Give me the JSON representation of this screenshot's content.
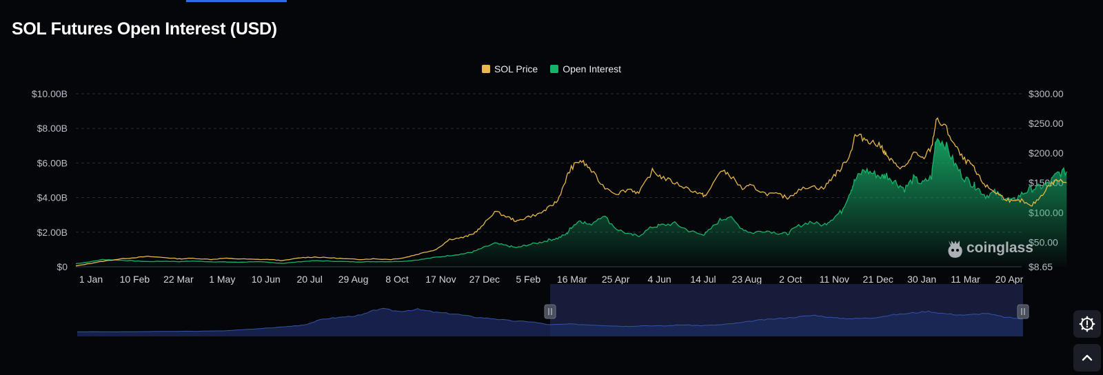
{
  "page": {
    "title": "SOL Futures Open Interest (USD)",
    "watermark": "coinglass"
  },
  "colors": {
    "background": "#05060a",
    "price": "#e8b84a",
    "open_interest": "#18b36b",
    "grid": "#2a2d36",
    "navigator_fill": "#1c2a5e",
    "navigator_line": "#3553a8",
    "navigator_selected": "#1a2142"
  },
  "chart_data": {
    "type": "line",
    "title": "SOL Futures Open Interest (USD)",
    "x_labels": [
      "1 Jan",
      "10 Feb",
      "22 Mar",
      "1 May",
      "10 Jun",
      "20 Jul",
      "29 Aug",
      "8 Oct",
      "17 Nov",
      "27 Dec",
      "5 Feb",
      "16 Mar",
      "25 Apr",
      "4 Jun",
      "14 Jul",
      "23 Aug",
      "2 Oct",
      "11 Nov",
      "21 Dec",
      "30 Jan",
      "11 Mar",
      "20 Apr"
    ],
    "left_axis": {
      "ticks": [
        "$0",
        "$2.00B",
        "$4.00B",
        "$6.00B",
        "$8.00B",
        "$10.00B"
      ],
      "range": [
        0,
        10
      ]
    },
    "right_axis": {
      "ticks": [
        "$8.65",
        "$50.00",
        "$100.00",
        "$150.00",
        "$200.00",
        "$250.00",
        "$300.00"
      ],
      "range": [
        8.65,
        300
      ]
    },
    "legend": {
      "placement": "top-center"
    },
    "grid": true,
    "series": [
      {
        "name": "SOL Price",
        "axis": "right",
        "color": "#e8b84a",
        "points": [
          [
            0,
            10
          ],
          [
            0.3,
            14
          ],
          [
            0.6,
            18
          ],
          [
            1,
            22
          ],
          [
            1.3,
            24
          ],
          [
            1.6,
            26
          ],
          [
            2,
            24
          ],
          [
            2.3,
            22
          ],
          [
            2.6,
            23
          ],
          [
            3,
            21
          ],
          [
            3.3,
            23
          ],
          [
            3.6,
            22
          ],
          [
            4,
            21
          ],
          [
            4.3,
            21
          ],
          [
            4.6,
            19
          ],
          [
            5,
            24
          ],
          [
            5.3,
            25
          ],
          [
            5.6,
            24
          ],
          [
            6,
            22
          ],
          [
            6.3,
            21
          ],
          [
            6.6,
            22
          ],
          [
            7,
            21
          ],
          [
            7.3,
            24
          ],
          [
            7.6,
            30
          ],
          [
            8,
            38
          ],
          [
            8.3,
            55
          ],
          [
            8.6,
            58
          ],
          [
            8.8,
            63
          ],
          [
            9,
            75
          ],
          [
            9.3,
            102
          ],
          [
            9.6,
            92
          ],
          [
            9.8,
            85
          ],
          [
            10,
            92
          ],
          [
            10.3,
            98
          ],
          [
            10.5,
            108
          ],
          [
            10.7,
            120
          ],
          [
            10.9,
            160
          ],
          [
            11,
            175
          ],
          [
            11.2,
            188
          ],
          [
            11.4,
            175
          ],
          [
            11.7,
            145
          ],
          [
            12,
            132
          ],
          [
            12.3,
            140
          ],
          [
            12.5,
            132
          ],
          [
            12.8,
            170
          ],
          [
            13,
            160
          ],
          [
            13.3,
            150
          ],
          [
            13.6,
            140
          ],
          [
            13.9,
            130
          ],
          [
            14,
            128
          ],
          [
            14.3,
            170
          ],
          [
            14.5,
            165
          ],
          [
            14.8,
            140
          ],
          [
            15,
            145
          ],
          [
            15.3,
            132
          ],
          [
            15.6,
            130
          ],
          [
            15.8,
            125
          ],
          [
            16,
            135
          ],
          [
            16.3,
            145
          ],
          [
            16.6,
            140
          ],
          [
            16.8,
            160
          ],
          [
            17,
            175
          ],
          [
            17.2,
            200
          ],
          [
            17.3,
            230
          ],
          [
            17.5,
            225
          ],
          [
            17.7,
            218
          ],
          [
            17.9,
            210
          ],
          [
            18,
            195
          ],
          [
            18.2,
            180
          ],
          [
            18.4,
            175
          ],
          [
            18.6,
            200
          ],
          [
            18.8,
            190
          ],
          [
            19,
            210
          ],
          [
            19.1,
            255
          ],
          [
            19.3,
            245
          ],
          [
            19.5,
            215
          ],
          [
            19.7,
            190
          ],
          [
            19.9,
            180
          ],
          [
            20,
            165
          ],
          [
            20.2,
            145
          ],
          [
            20.4,
            135
          ],
          [
            20.6,
            125
          ],
          [
            20.8,
            118
          ],
          [
            21,
            120
          ],
          [
            21.2,
            110
          ],
          [
            21.4,
            125
          ],
          [
            21.6,
            145
          ],
          [
            21.8,
            155
          ],
          [
            22,
            150
          ]
        ]
      },
      {
        "name": "Open Interest",
        "axis": "left",
        "color": "#18b36b",
        "points": [
          [
            0,
            0.18
          ],
          [
            0.3,
            0.28
          ],
          [
            0.6,
            0.42
          ],
          [
            1,
            0.38
          ],
          [
            1.3,
            0.34
          ],
          [
            1.6,
            0.3
          ],
          [
            2,
            0.32
          ],
          [
            2.3,
            0.3
          ],
          [
            2.6,
            0.33
          ],
          [
            3,
            0.29
          ],
          [
            3.3,
            0.28
          ],
          [
            3.6,
            0.26
          ],
          [
            4,
            0.3
          ],
          [
            4.3,
            0.25
          ],
          [
            4.6,
            0.2
          ],
          [
            5,
            0.3
          ],
          [
            5.3,
            0.35
          ],
          [
            5.6,
            0.33
          ],
          [
            6,
            0.3
          ],
          [
            6.3,
            0.28
          ],
          [
            6.6,
            0.3
          ],
          [
            7,
            0.3
          ],
          [
            7.3,
            0.32
          ],
          [
            7.6,
            0.4
          ],
          [
            8,
            0.55
          ],
          [
            8.3,
            0.65
          ],
          [
            8.6,
            0.75
          ],
          [
            8.8,
            0.85
          ],
          [
            9,
            1.05
          ],
          [
            9.3,
            1.35
          ],
          [
            9.6,
            1.2
          ],
          [
            9.8,
            1.1
          ],
          [
            10,
            1.25
          ],
          [
            10.3,
            1.4
          ],
          [
            10.5,
            1.55
          ],
          [
            10.7,
            1.65
          ],
          [
            10.9,
            1.9
          ],
          [
            11,
            2.3
          ],
          [
            11.2,
            2.7
          ],
          [
            11.4,
            2.4
          ],
          [
            11.7,
            3.0
          ],
          [
            12,
            2.2
          ],
          [
            12.3,
            1.85
          ],
          [
            12.5,
            1.8
          ],
          [
            12.8,
            2.3
          ],
          [
            13,
            2.4
          ],
          [
            13.3,
            2.5
          ],
          [
            13.6,
            2.1
          ],
          [
            13.9,
            1.85
          ],
          [
            14,
            1.95
          ],
          [
            14.3,
            2.7
          ],
          [
            14.5,
            2.9
          ],
          [
            14.8,
            2.2
          ],
          [
            15,
            1.95
          ],
          [
            15.3,
            2.1
          ],
          [
            15.6,
            1.95
          ],
          [
            15.8,
            1.9
          ],
          [
            16,
            2.3
          ],
          [
            16.3,
            2.6
          ],
          [
            16.6,
            2.4
          ],
          [
            16.8,
            2.8
          ],
          [
            17,
            3.2
          ],
          [
            17.2,
            4.4
          ],
          [
            17.3,
            5.0
          ],
          [
            17.5,
            5.6
          ],
          [
            17.7,
            5.4
          ],
          [
            17.9,
            5.2
          ],
          [
            18,
            5.3
          ],
          [
            18.2,
            4.9
          ],
          [
            18.4,
            4.5
          ],
          [
            18.6,
            5.1
          ],
          [
            18.8,
            4.8
          ],
          [
            19,
            5.2
          ],
          [
            19.1,
            7.5
          ],
          [
            19.3,
            7.1
          ],
          [
            19.5,
            6.0
          ],
          [
            19.7,
            5.2
          ],
          [
            19.9,
            4.8
          ],
          [
            20,
            4.6
          ],
          [
            20.2,
            4.1
          ],
          [
            20.4,
            4.3
          ],
          [
            20.6,
            4.0
          ],
          [
            20.8,
            3.8
          ],
          [
            21,
            4.2
          ],
          [
            21.2,
            4.5
          ],
          [
            21.4,
            4.6
          ],
          [
            21.6,
            4.8
          ],
          [
            21.8,
            5.4
          ],
          [
            22,
            5.5
          ]
        ]
      }
    ],
    "navigator": {
      "selected_range_fraction": [
        0.5,
        1.0
      ],
      "points": [
        [
          0,
          0.12
        ],
        [
          0.05,
          0.12
        ],
        [
          0.1,
          0.13
        ],
        [
          0.15,
          0.14
        ],
        [
          0.18,
          0.18
        ],
        [
          0.22,
          0.25
        ],
        [
          0.24,
          0.3
        ],
        [
          0.26,
          0.45
        ],
        [
          0.28,
          0.5
        ],
        [
          0.3,
          0.55
        ],
        [
          0.32,
          0.72
        ],
        [
          0.34,
          0.65
        ],
        [
          0.36,
          0.7
        ],
        [
          0.38,
          0.62
        ],
        [
          0.4,
          0.58
        ],
        [
          0.42,
          0.5
        ],
        [
          0.44,
          0.46
        ],
        [
          0.46,
          0.4
        ],
        [
          0.48,
          0.38
        ],
        [
          0.5,
          0.3
        ],
        [
          0.52,
          0.32
        ],
        [
          0.54,
          0.3
        ],
        [
          0.56,
          0.28
        ],
        [
          0.58,
          0.26
        ],
        [
          0.6,
          0.28
        ],
        [
          0.62,
          0.27
        ],
        [
          0.64,
          0.3
        ],
        [
          0.66,
          0.28
        ],
        [
          0.68,
          0.3
        ],
        [
          0.7,
          0.35
        ],
        [
          0.72,
          0.42
        ],
        [
          0.74,
          0.46
        ],
        [
          0.76,
          0.5
        ],
        [
          0.78,
          0.55
        ],
        [
          0.8,
          0.48
        ],
        [
          0.82,
          0.46
        ],
        [
          0.84,
          0.48
        ],
        [
          0.86,
          0.55
        ],
        [
          0.88,
          0.6
        ],
        [
          0.9,
          0.65
        ],
        [
          0.92,
          0.58
        ],
        [
          0.94,
          0.55
        ],
        [
          0.96,
          0.6
        ],
        [
          0.98,
          0.5
        ],
        [
          1,
          0.45
        ]
      ]
    }
  }
}
